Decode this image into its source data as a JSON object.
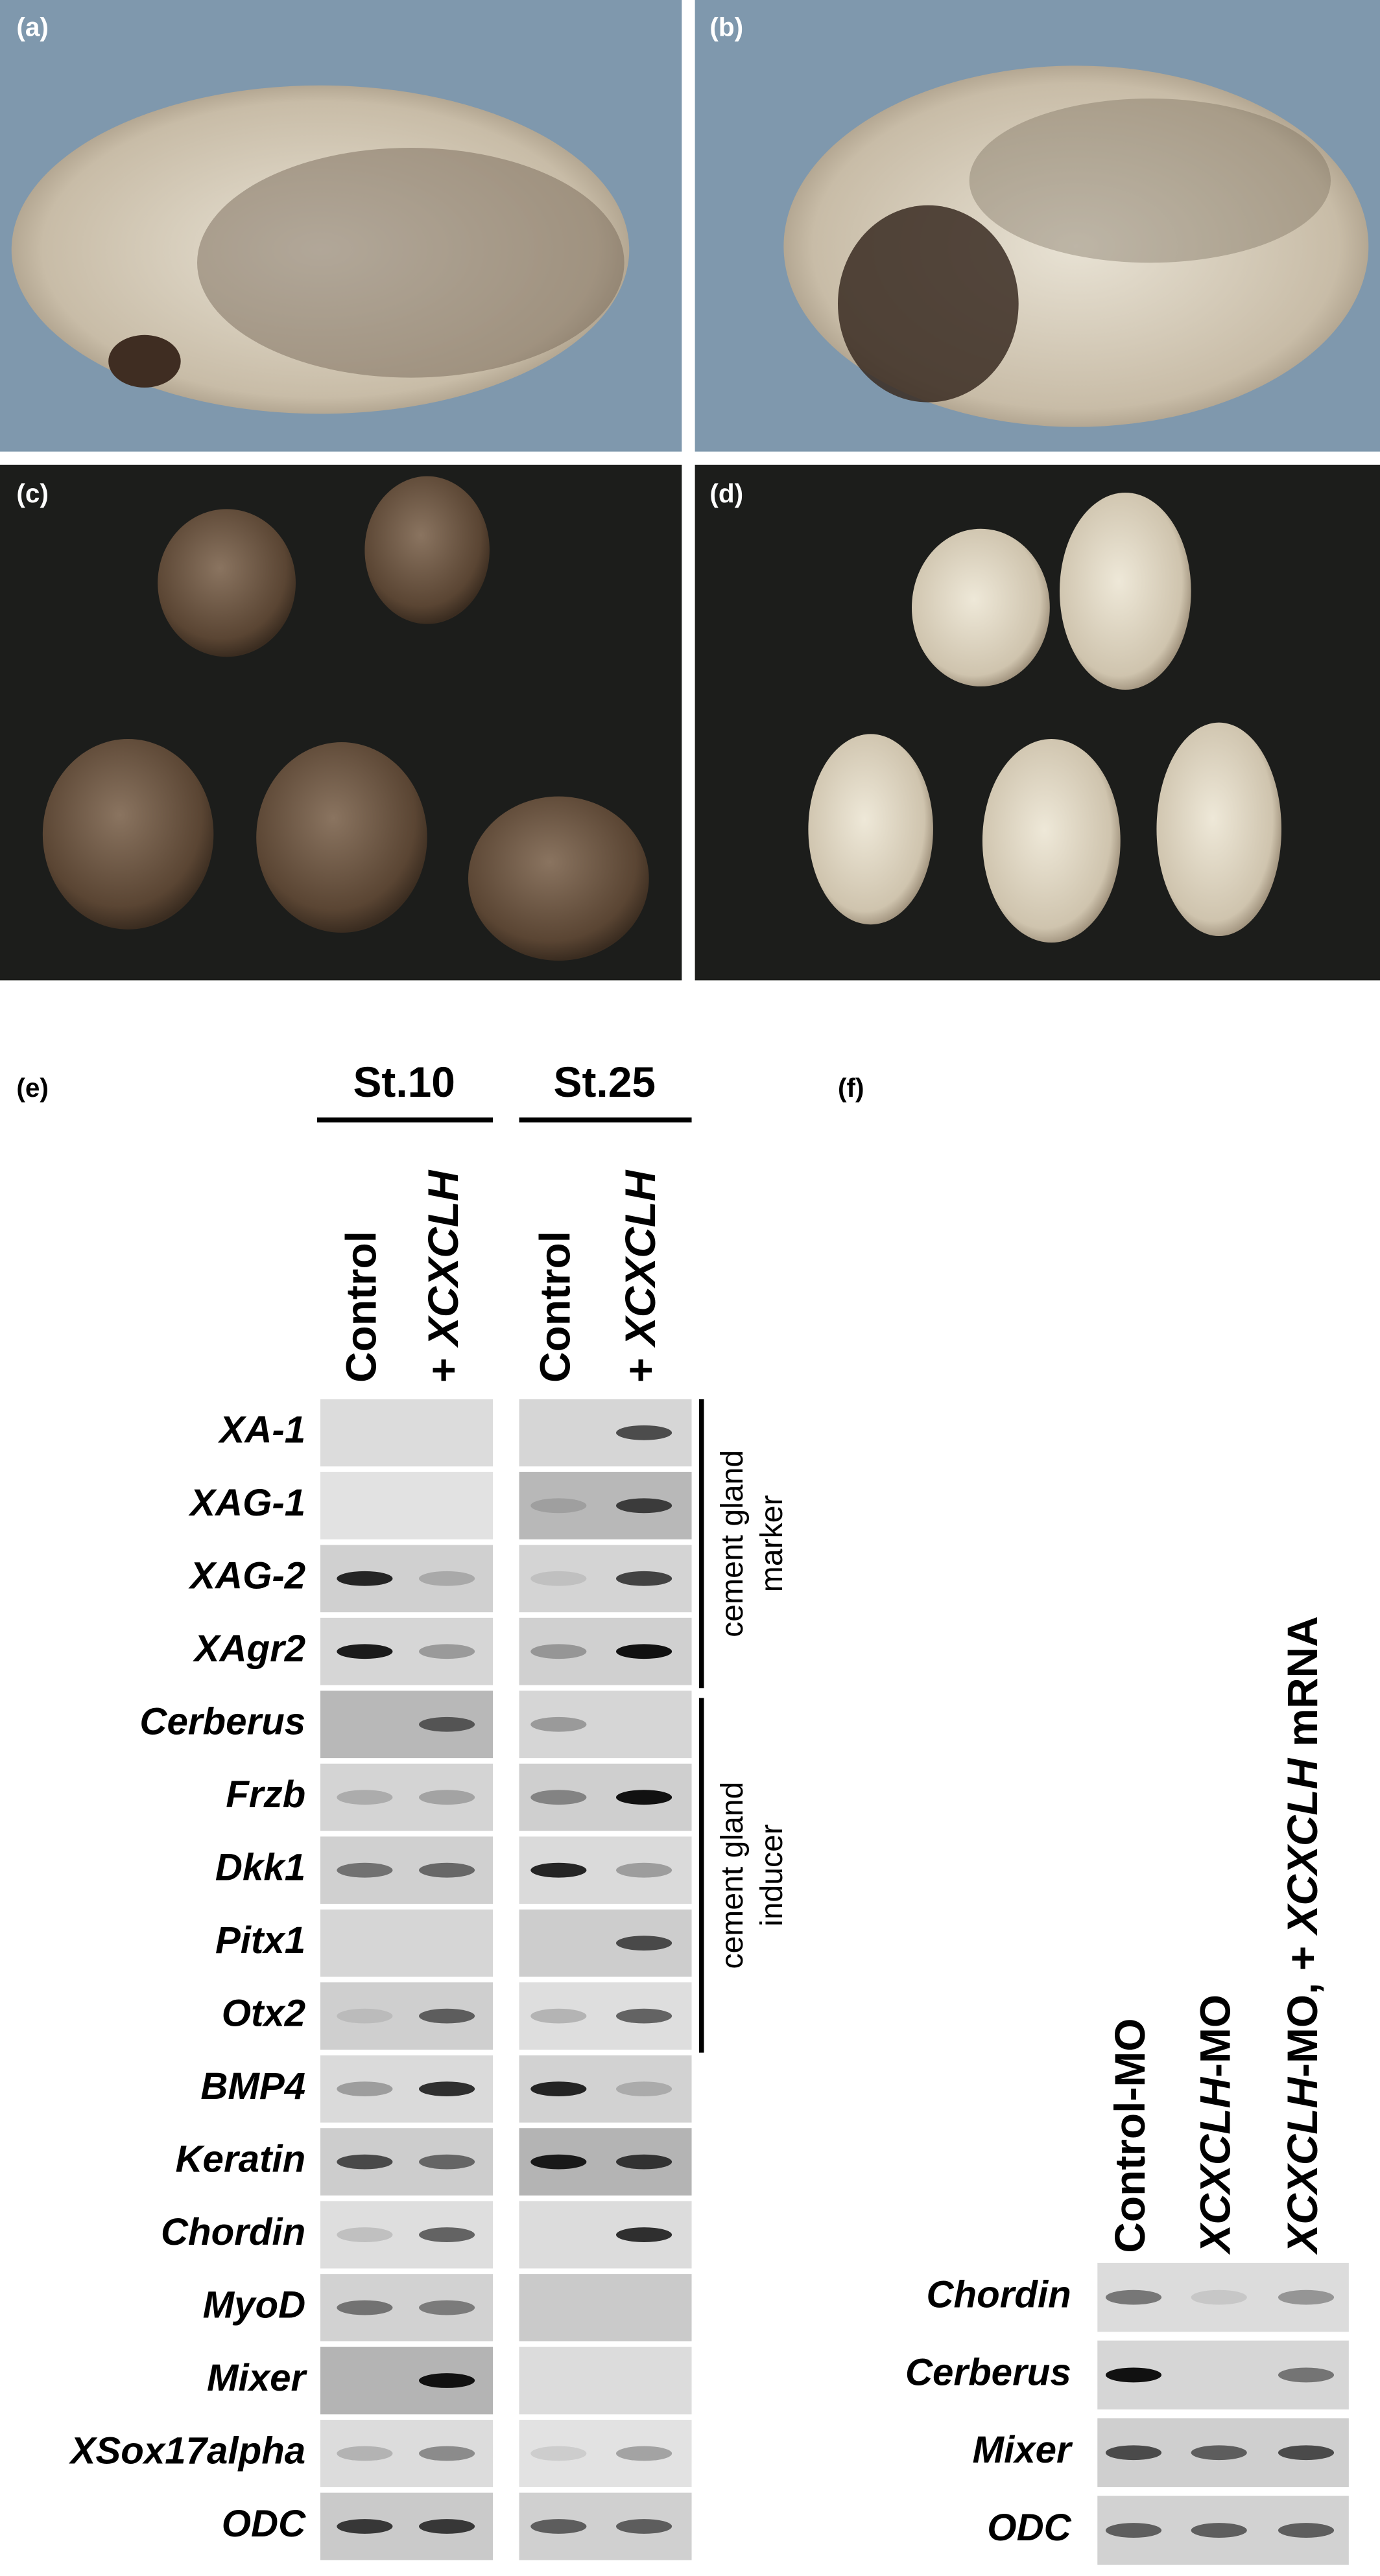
{
  "panels": {
    "a": "(a)",
    "b": "(b)",
    "c": "(c)",
    "d": "(d)"
  },
  "e": {
    "label": "(e)",
    "stages": [
      "St.10",
      "St.25"
    ],
    "lanes": [
      [
        {
          "text": "Control",
          "italic": false
        }
      ],
      [
        {
          "text": "+ ",
          "italic": false
        },
        {
          "text": "XCXCLH",
          "italic": true
        }
      ]
    ],
    "genes": [
      "XA-1",
      "XAG-1",
      "XAG-2",
      "XAgr2",
      "Cerberus",
      "Frzb",
      "Dkk1",
      "Pitx1",
      "Otx2",
      "BMP4",
      "Keratin",
      "Chordin",
      "MyoD",
      "Mixer",
      "XSox17alpha",
      "ODC"
    ],
    "groups": [
      [
        "cement gland",
        "marker"
      ],
      [
        "cement gland",
        "inducer"
      ]
    ]
  },
  "f": {
    "label": "(f)",
    "lanes": [
      [
        {
          "text": "Control-MO",
          "italic": false
        }
      ],
      [
        {
          "text": "XCXCLH",
          "italic": true
        },
        {
          "text": "-MO",
          "italic": false
        }
      ],
      [
        {
          "text": "XCXCLH",
          "italic": true
        },
        {
          "text": "-MO, + ",
          "italic": false
        },
        {
          "text": "XCXCLH",
          "italic": true
        },
        {
          "text": " mRNA",
          "italic": false
        }
      ]
    ],
    "genes": [
      "Chordin",
      "Cerberus",
      "Mixer",
      "ODC"
    ]
  }
}
